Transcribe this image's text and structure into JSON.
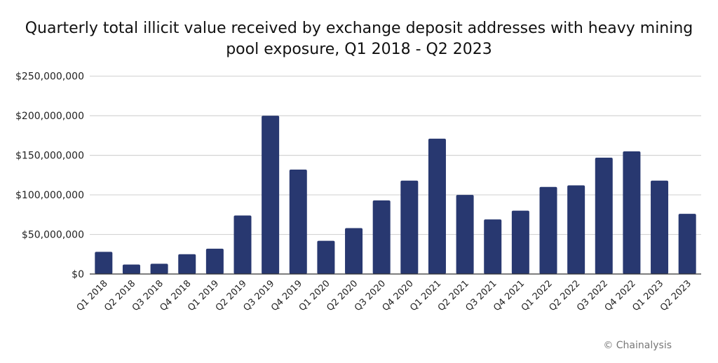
{
  "chart_data": {
    "type": "bar",
    "title_lines": [
      "Quarterly total illicit value received by exchange deposit addresses with heavy mining",
      "pool exposure, Q1 2018 - Q2 2023"
    ],
    "xlabel": "",
    "ylabel": "",
    "ylim": [
      0,
      250000000
    ],
    "yticks": [
      0,
      50000000,
      100000000,
      150000000,
      200000000,
      250000000
    ],
    "ytick_labels": [
      "$0",
      "$50,000,000",
      "$100,000,000",
      "$150,000,000",
      "$200,000,000",
      "$250,000,000"
    ],
    "grid": true,
    "bar_color": "#283870",
    "categories": [
      "Q1 2018",
      "Q2 2018",
      "Q3 2018",
      "Q4 2018",
      "Q1 2019",
      "Q2 2019",
      "Q3 2019",
      "Q4 2019",
      "Q1 2020",
      "Q2 2020",
      "Q3 2020",
      "Q4 2020",
      "Q1 2021",
      "Q2 2021",
      "Q3 2021",
      "Q4 2021",
      "Q1 2022",
      "Q2 2022",
      "Q3 2022",
      "Q4 2022",
      "Q1 2023",
      "Q2 2023"
    ],
    "values": [
      28000000,
      12000000,
      13000000,
      25000000,
      32000000,
      74000000,
      200000000,
      132000000,
      42000000,
      58000000,
      93000000,
      118000000,
      171000000,
      100000000,
      69000000,
      80000000,
      110000000,
      112000000,
      147000000,
      155000000,
      118000000,
      76000000
    ]
  },
  "credit": "© Chainalysis"
}
